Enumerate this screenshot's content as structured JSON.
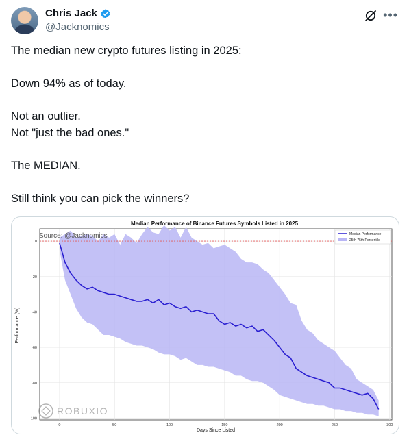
{
  "author": {
    "name": "Chris Jack",
    "handle": "@Jacknomics"
  },
  "icons": {
    "verified": "verified-badge-icon",
    "grok": "grok-icon",
    "more": "more-options-icon"
  },
  "colors": {
    "verified": "#1d9bf0",
    "median_line": "#2a1fd1",
    "band": "#b9b6f5",
    "zero_line": "#e05a5a"
  },
  "tweet": {
    "line1": "The median new crypto futures listing in 2025:",
    "line2": "Down 94% as of today.",
    "line3": "Not an outlier.",
    "line4": "Not \"just the bad ones.\"",
    "line5": "The MEDIAN.",
    "line6": "Still think you can pick the winners?"
  },
  "chart_data": {
    "type": "area",
    "title": "Median Performance of Binance Futures Symbols Listed in 2025",
    "xlabel": "Days Since Listed",
    "ylabel": "Performance (%)",
    "xlim": [
      -18,
      302
    ],
    "ylim": [
      -101,
      7
    ],
    "x_ticks": [
      0,
      50,
      100,
      150,
      200,
      250,
      300
    ],
    "y_ticks": [
      0,
      -20,
      -40,
      -60,
      -80,
      -100
    ],
    "grid": true,
    "legend_position": "top-right",
    "annotation": "Source: @Jacknomics",
    "watermark": "ROBUXIO",
    "reference_line_y": 0,
    "series": [
      {
        "name": "Median Performance",
        "x": [
          0,
          5,
          10,
          15,
          20,
          25,
          30,
          35,
          40,
          45,
          50,
          55,
          60,
          65,
          70,
          75,
          80,
          85,
          90,
          95,
          100,
          105,
          110,
          115,
          120,
          125,
          130,
          135,
          140,
          145,
          150,
          155,
          160,
          165,
          170,
          175,
          180,
          185,
          190,
          195,
          200,
          205,
          210,
          215,
          220,
          225,
          230,
          235,
          240,
          245,
          250,
          255,
          260,
          265,
          270,
          275,
          280,
          285,
          290
        ],
        "values": [
          -1,
          -12,
          -18,
          -22,
          -25,
          -27,
          -26,
          -28,
          -29,
          -30,
          -30,
          -31,
          -32,
          -33,
          -34,
          -34,
          -33,
          -35,
          -33,
          -36,
          -35,
          -37,
          -38,
          -37,
          -40,
          -39,
          -40,
          -41,
          -41,
          -45,
          -47,
          -46,
          -48,
          -47,
          -49,
          -48,
          -51,
          -50,
          -53,
          -56,
          -60,
          -64,
          -66,
          -72,
          -74,
          -76,
          -77,
          -78,
          -79,
          -80,
          -83,
          -83,
          -84,
          -85,
          -86,
          -87,
          -86,
          -89,
          -95
        ]
      },
      {
        "name": "25th-75th Percentile",
        "x": [
          0,
          5,
          10,
          15,
          20,
          25,
          30,
          35,
          40,
          45,
          50,
          55,
          60,
          65,
          70,
          75,
          80,
          85,
          90,
          95,
          100,
          105,
          110,
          115,
          120,
          125,
          130,
          135,
          140,
          145,
          150,
          155,
          160,
          165,
          170,
          175,
          180,
          185,
          190,
          195,
          200,
          205,
          210,
          215,
          220,
          225,
          230,
          235,
          240,
          245,
          250,
          255,
          260,
          265,
          270,
          275,
          280,
          285,
          290
        ],
        "upper": [
          2,
          4,
          6,
          2,
          3,
          4,
          3,
          0,
          4,
          2,
          4,
          -2,
          4,
          2,
          -1,
          4,
          8,
          5,
          4,
          9,
          6,
          8,
          2,
          8,
          2,
          0,
          -2,
          -1,
          -4,
          -3,
          -2,
          -4,
          -6,
          -10,
          -12,
          -12,
          -13,
          -16,
          -18,
          -22,
          -26,
          -30,
          -35,
          -36,
          -45,
          -50,
          -52,
          -56,
          -58,
          -60,
          -62,
          -66,
          -70,
          -72,
          -78,
          -80,
          -82,
          -84,
          -90
        ],
        "lower": [
          -5,
          -22,
          -30,
          -38,
          -43,
          -46,
          -47,
          -50,
          -53,
          -53,
          -54,
          -55,
          -57,
          -58,
          -59,
          -59,
          -60,
          -61,
          -63,
          -64,
          -64,
          -65,
          -67,
          -66,
          -68,
          -70,
          -70,
          -71,
          -71,
          -72,
          -73,
          -74,
          -76,
          -76,
          -78,
          -79,
          -79,
          -80,
          -82,
          -84,
          -87,
          -88,
          -89,
          -90,
          -91,
          -92,
          -92,
          -93,
          -93,
          -94,
          -95,
          -95,
          -96,
          -96,
          -97,
          -97,
          -98,
          -98,
          -99
        ]
      }
    ]
  }
}
